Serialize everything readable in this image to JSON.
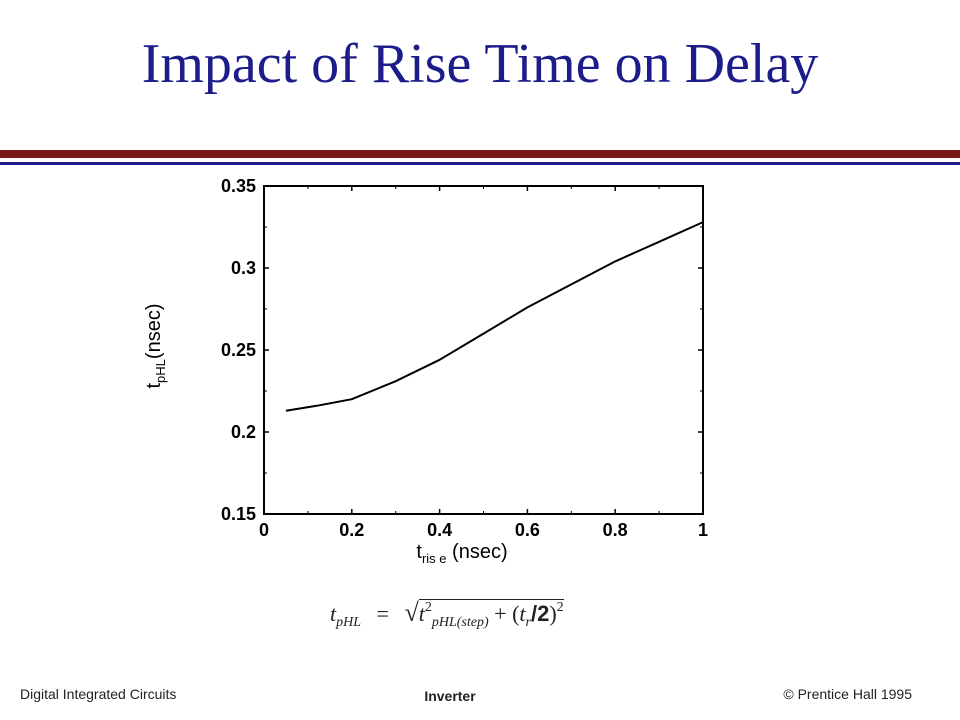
{
  "slide": {
    "title": "Impact of Rise Time on Delay",
    "footer_left": "Digital Integrated Circuits",
    "footer_center": "Inverter",
    "footer_right": "© Prentice Hall 1995"
  },
  "formula": {
    "lhs_var": "t",
    "lhs_sub": "pHL",
    "equals": "=",
    "radical": "√",
    "term1_var": "t",
    "term1_sup": "2",
    "term1_sub": "pHL(step)",
    "plus": "+",
    "term2_open": "(",
    "term2_var": "t",
    "term2_sub": "r",
    "term2_div": "/2",
    "term2_close": ")",
    "term2_sup": "2"
  },
  "chart_data": {
    "type": "line",
    "x": [
      0.05,
      0.12,
      0.2,
      0.3,
      0.4,
      0.5,
      0.6,
      0.7,
      0.8,
      0.9,
      1.0
    ],
    "series": [
      {
        "values": [
          0.213,
          0.216,
          0.22,
          0.231,
          0.244,
          0.26,
          0.276,
          0.29,
          0.304,
          0.316,
          0.328
        ]
      }
    ],
    "xlim": [
      0,
      1
    ],
    "ylim": [
      0.15,
      0.35
    ],
    "xticks": [
      "0",
      "0.2",
      "0.4",
      "0.6",
      "0.8",
      "1"
    ],
    "yticks": [
      "0.15",
      "0.2",
      "0.25",
      "0.3",
      "0.35"
    ],
    "xlabel": {
      "main": "t",
      "sub": "ris e",
      "unit": " (nsec)"
    },
    "ylabel": {
      "main": "t",
      "sub": "pHL",
      "unit": "(nsec)"
    },
    "grid": false,
    "line_color": "#000000"
  }
}
